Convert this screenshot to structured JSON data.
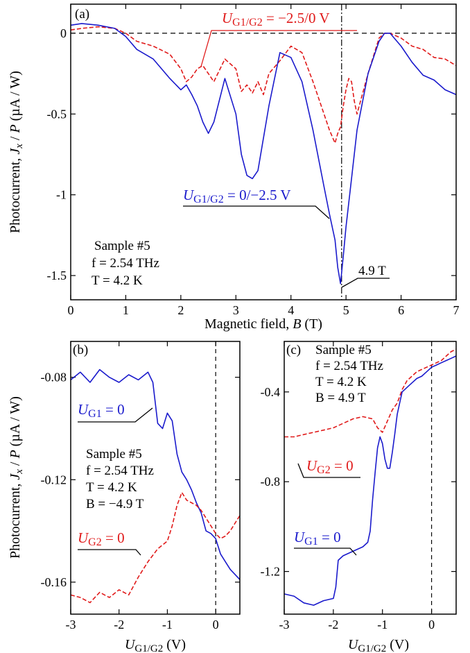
{
  "colors": {
    "blue": "#1a1acc",
    "red": "#e01a1a",
    "black": "#000000"
  },
  "chart_data": [
    {
      "panel": "(a)",
      "type": "line",
      "xlabel_prefix": "Magnetic field, ",
      "xlabel_var": "B",
      "xlabel_unit": " (T)",
      "ylabel_prefix": "Photocurrent, ",
      "ylabel_var1": "J",
      "ylabel_sub": "x",
      "ylabel_mid": " / ",
      "ylabel_var2": "P",
      "ylabel_unit": " (µA / W)",
      "xlim": [
        0,
        7
      ],
      "ylim": [
        -1.65,
        0.18
      ],
      "xticks": [
        0,
        1,
        2,
        3,
        4,
        5,
        6,
        7
      ],
      "yticks": [
        0,
        -0.5,
        -1,
        -1.5
      ],
      "ytick_labels": [
        "0",
        "-0.5",
        "-1",
        "-1.5"
      ],
      "hline_zero": true,
      "vline": 4.92,
      "sample_lines": [
        "Sample #5",
        "f = 2.54 THz",
        "T = 4.2 K"
      ],
      "marker_label": "4.9 T",
      "series": [
        {
          "name": "UG1/G2 = −2.5/0 V",
          "name_var": "U",
          "name_sub": "G1/G2",
          "name_rest": " = −2.5/0 V",
          "color": "red",
          "dash": true,
          "x": [
            0,
            0.2,
            0.5,
            0.8,
            1.0,
            1.2,
            1.5,
            1.8,
            2.0,
            2.1,
            2.2,
            2.3,
            2.4,
            2.5,
            2.6,
            2.8,
            3.0,
            3.1,
            3.2,
            3.3,
            3.4,
            3.5,
            3.6,
            3.8,
            4.0,
            4.2,
            4.4,
            4.6,
            4.7,
            4.8,
            4.85,
            4.9,
            4.95,
            5.0,
            5.05,
            5.1,
            5.15,
            5.2,
            5.4,
            5.6,
            5.7,
            5.8,
            6.0,
            6.2,
            6.4,
            6.6,
            6.8,
            7.0
          ],
          "y": [
            0.02,
            0.03,
            0.04,
            0.03,
            0.0,
            -0.05,
            -0.08,
            -0.13,
            -0.22,
            -0.3,
            -0.27,
            -0.22,
            -0.2,
            -0.25,
            -0.3,
            -0.16,
            -0.22,
            -0.36,
            -0.32,
            -0.37,
            -0.3,
            -0.38,
            -0.25,
            -0.17,
            -0.08,
            -0.12,
            -0.3,
            -0.5,
            -0.6,
            -0.68,
            -0.62,
            -0.58,
            -0.45,
            -0.35,
            -0.28,
            -0.3,
            -0.42,
            -0.5,
            -0.25,
            -0.03,
            0.0,
            0.0,
            -0.03,
            -0.08,
            -0.1,
            -0.15,
            -0.16,
            -0.2
          ]
        },
        {
          "name": "UG1/G2 = 0/−2.5 V",
          "name_var": "U",
          "name_sub": "G1/G2",
          "name_rest": " = 0/−2.5 V",
          "color": "blue",
          "dash": false,
          "x": [
            0,
            0.2,
            0.5,
            0.8,
            1.0,
            1.2,
            1.5,
            1.8,
            2.0,
            2.1,
            2.2,
            2.3,
            2.4,
            2.5,
            2.6,
            2.8,
            3.0,
            3.1,
            3.2,
            3.3,
            3.4,
            3.6,
            3.8,
            4.0,
            4.2,
            4.4,
            4.6,
            4.7,
            4.8,
            4.85,
            4.9,
            4.95,
            5.0,
            5.1,
            5.2,
            5.4,
            5.6,
            5.7,
            5.8,
            6.0,
            6.2,
            6.4,
            6.6,
            6.8,
            7.0
          ],
          "y": [
            0.05,
            0.06,
            0.05,
            0.03,
            -0.02,
            -0.1,
            -0.16,
            -0.28,
            -0.35,
            -0.32,
            -0.38,
            -0.45,
            -0.55,
            -0.62,
            -0.55,
            -0.28,
            -0.5,
            -0.75,
            -0.88,
            -0.9,
            -0.85,
            -0.45,
            -0.12,
            -0.15,
            -0.3,
            -0.6,
            -0.95,
            -1.12,
            -1.28,
            -1.45,
            -1.55,
            -1.38,
            -1.2,
            -0.9,
            -0.6,
            -0.25,
            -0.05,
            0.0,
            0.0,
            -0.08,
            -0.18,
            -0.26,
            -0.29,
            -0.35,
            -0.38
          ]
        }
      ]
    },
    {
      "panel": "(b)",
      "type": "line",
      "xlabel_var": "U",
      "xlabel_sub": "G1/G2",
      "xlabel_unit": " (V)",
      "ylabel_prefix": "Photocurrent, ",
      "ylabel_var1": "J",
      "ylabel_sub": "x",
      "ylabel_mid": " / ",
      "ylabel_var2": "P",
      "ylabel_unit": " (µA / W)",
      "xlim": [
        -3,
        0.5
      ],
      "ylim": [
        -0.1725,
        -0.066
      ],
      "xticks": [
        -3,
        -2,
        -1,
        0
      ],
      "yticks": [
        -0.08,
        -0.12,
        -0.16
      ],
      "ytick_labels": [
        "-0.08",
        "-0.12",
        "-0.16"
      ],
      "vline": 0,
      "sample_lines": [
        "Sample #5",
        "f = 2.54 THz",
        "T = 4.2 K",
        "B = −4.9 T"
      ],
      "series": [
        {
          "name": "UG1 = 0",
          "name_var": "U",
          "name_sub": "G1",
          "name_rest": " = 0",
          "color": "blue",
          "dash": false,
          "x": [
            -3.0,
            -2.8,
            -2.6,
            -2.4,
            -2.2,
            -2.0,
            -1.8,
            -1.6,
            -1.4,
            -1.3,
            -1.2,
            -1.1,
            -1.0,
            -0.9,
            -0.8,
            -0.7,
            -0.6,
            -0.5,
            -0.4,
            -0.3,
            -0.2,
            -0.1,
            0.0,
            0.1,
            0.2,
            0.3,
            0.4,
            0.5
          ],
          "y": [
            -0.081,
            -0.078,
            -0.082,
            -0.077,
            -0.08,
            -0.082,
            -0.079,
            -0.081,
            -0.078,
            -0.082,
            -0.098,
            -0.1,
            -0.094,
            -0.097,
            -0.11,
            -0.117,
            -0.12,
            -0.124,
            -0.129,
            -0.133,
            -0.14,
            -0.141,
            -0.143,
            -0.149,
            -0.152,
            -0.155,
            -0.157,
            -0.159
          ]
        },
        {
          "name": "UG2 = 0",
          "name_var": "U",
          "name_sub": "G2",
          "name_rest": " = 0",
          "color": "red",
          "dash": true,
          "x": [
            -3.0,
            -2.8,
            -2.6,
            -2.4,
            -2.2,
            -2.0,
            -1.8,
            -1.6,
            -1.4,
            -1.2,
            -1.0,
            -0.9,
            -0.8,
            -0.7,
            -0.6,
            -0.5,
            -0.4,
            -0.3,
            -0.2,
            -0.1,
            0.0,
            0.1,
            0.2,
            0.3,
            0.4,
            0.5
          ],
          "y": [
            -0.165,
            -0.166,
            -0.168,
            -0.164,
            -0.166,
            -0.163,
            -0.165,
            -0.158,
            -0.152,
            -0.147,
            -0.144,
            -0.138,
            -0.13,
            -0.125,
            -0.128,
            -0.129,
            -0.13,
            -0.132,
            -0.135,
            -0.138,
            -0.141,
            -0.143,
            -0.142,
            -0.14,
            -0.137,
            -0.134
          ]
        }
      ]
    },
    {
      "panel": "(c)",
      "type": "line",
      "xlabel_var": "U",
      "xlabel_sub": "G1/G2",
      "xlabel_unit": " (V)",
      "xlim": [
        -3,
        0.5
      ],
      "ylim": [
        -1.39,
        -0.175
      ],
      "xticks": [
        -3,
        -2,
        -1,
        0
      ],
      "yticks": [
        -0.4,
        -0.8,
        -1.2
      ],
      "ytick_labels": [
        "-0.4",
        "-0.8",
        "-1.2"
      ],
      "vline": 0,
      "sample_lines": [
        "Sample #5",
        "f = 2.54 THz",
        "T = 4.2 K",
        "B = 4.9 T"
      ],
      "series": [
        {
          "name": "UG2 = 0",
          "name_var": "U",
          "name_sub": "G2",
          "name_rest": " = 0",
          "color": "red",
          "dash": true,
          "x": [
            -3.0,
            -2.8,
            -2.6,
            -2.4,
            -2.2,
            -2.0,
            -1.8,
            -1.6,
            -1.4,
            -1.2,
            -1.1,
            -1.0,
            -0.9,
            -0.8,
            -0.7,
            -0.6,
            -0.5,
            -0.4,
            -0.3,
            -0.2,
            -0.1,
            0.0,
            0.1,
            0.2,
            0.3,
            0.4,
            0.5
          ],
          "y": [
            -0.6,
            -0.6,
            -0.59,
            -0.58,
            -0.57,
            -0.56,
            -0.54,
            -0.52,
            -0.51,
            -0.52,
            -0.56,
            -0.58,
            -0.53,
            -0.48,
            -0.45,
            -0.39,
            -0.35,
            -0.33,
            -0.31,
            -0.3,
            -0.29,
            -0.28,
            -0.27,
            -0.26,
            -0.24,
            -0.22,
            -0.21
          ]
        },
        {
          "name": "UG1 = 0",
          "name_var": "U",
          "name_sub": "G1",
          "name_rest": " = 0",
          "color": "blue",
          "dash": false,
          "x": [
            -3.0,
            -2.8,
            -2.6,
            -2.4,
            -2.2,
            -2.0,
            -1.95,
            -1.9,
            -1.8,
            -1.6,
            -1.4,
            -1.3,
            -1.25,
            -1.2,
            -1.15,
            -1.1,
            -1.05,
            -1.0,
            -0.95,
            -0.9,
            -0.85,
            -0.8,
            -0.75,
            -0.7,
            -0.65,
            -0.6,
            -0.5,
            -0.4,
            -0.3,
            -0.2,
            -0.1,
            0.0,
            0.1,
            0.2,
            0.3,
            0.4,
            0.5
          ],
          "y": [
            -1.3,
            -1.31,
            -1.34,
            -1.35,
            -1.33,
            -1.32,
            -1.27,
            -1.15,
            -1.13,
            -1.11,
            -1.09,
            -1.07,
            -1.02,
            -0.88,
            -0.76,
            -0.65,
            -0.6,
            -0.63,
            -0.7,
            -0.74,
            -0.74,
            -0.67,
            -0.59,
            -0.5,
            -0.45,
            -0.4,
            -0.38,
            -0.36,
            -0.34,
            -0.33,
            -0.31,
            -0.29,
            -0.28,
            -0.27,
            -0.26,
            -0.25,
            -0.24
          ]
        }
      ]
    }
  ]
}
